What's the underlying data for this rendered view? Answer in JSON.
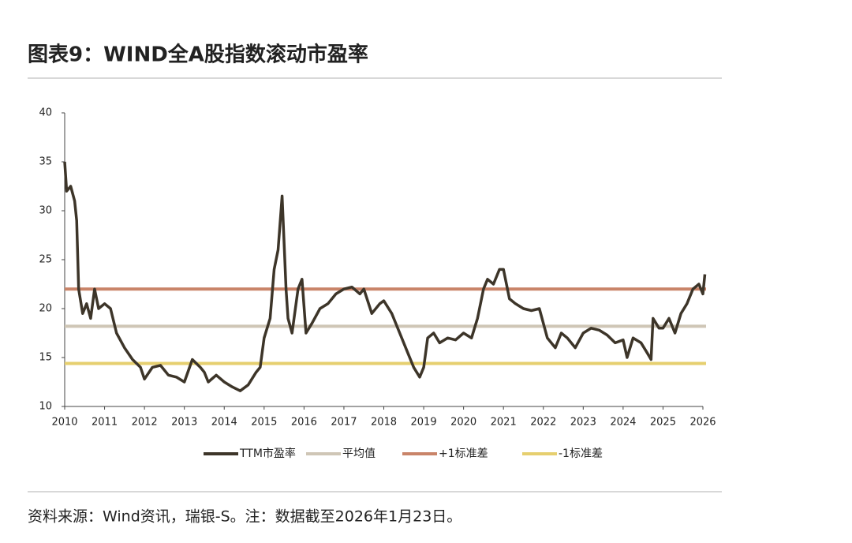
{
  "chart_data": {
    "type": "line",
    "title": "图表9：WIND全A股指数滚动市盈率",
    "source": "资料来源：Wind资讯，瑞银-S。注：数据截至2026年1月23日。",
    "xlim": [
      2010,
      2026
    ],
    "xticks": [
      2010,
      2011,
      2012,
      2013,
      2014,
      2015,
      2016,
      2017,
      2018,
      2019,
      2020,
      2021,
      2022,
      2023,
      2024,
      2025,
      2026
    ],
    "ylim": [
      10,
      40
    ],
    "yticks": [
      10,
      15,
      20,
      25,
      30,
      35,
      40
    ],
    "x": [
      2010.0,
      2010.05,
      2010.15,
      2010.25,
      2010.3,
      2010.35,
      2010.45,
      2010.55,
      2010.65,
      2010.75,
      2010.85,
      2011.0,
      2011.15,
      2011.3,
      2011.5,
      2011.7,
      2011.9,
      2012.0,
      2012.2,
      2012.4,
      2012.6,
      2012.8,
      2013.0,
      2013.2,
      2013.4,
      2013.5,
      2013.6,
      2013.8,
      2014.0,
      2014.2,
      2014.4,
      2014.6,
      2014.8,
      2014.9,
      2015.0,
      2015.15,
      2015.25,
      2015.35,
      2015.45,
      2015.55,
      2015.6,
      2015.7,
      2015.85,
      2015.95,
      2016.05,
      2016.2,
      2016.4,
      2016.6,
      2016.8,
      2017.0,
      2017.2,
      2017.4,
      2017.5,
      2017.7,
      2017.9,
      2018.0,
      2018.2,
      2018.4,
      2018.6,
      2018.75,
      2018.9,
      2019.0,
      2019.1,
      2019.25,
      2019.4,
      2019.6,
      2019.8,
      2020.0,
      2020.2,
      2020.35,
      2020.5,
      2020.6,
      2020.75,
      2020.9,
      2021.0,
      2021.15,
      2021.3,
      2021.5,
      2021.7,
      2021.9,
      2022.1,
      2022.3,
      2022.45,
      2022.6,
      2022.8,
      2023.0,
      2023.2,
      2023.4,
      2023.6,
      2023.8,
      2024.0,
      2024.1,
      2024.25,
      2024.45,
      2024.6,
      2024.7,
      2024.75,
      2024.9,
      2025.0,
      2025.15,
      2025.3,
      2025.45,
      2025.6,
      2025.75,
      2025.9,
      2026.0,
      2026.05
    ],
    "series": [
      {
        "name": "TTM市盈率",
        "color": "#3d3529",
        "values": [
          35,
          32,
          32.5,
          31,
          29,
          22,
          19.5,
          20.5,
          19,
          22,
          20,
          20.5,
          20,
          17.5,
          16,
          14.8,
          14,
          12.8,
          14,
          14.2,
          13.2,
          13,
          12.5,
          14.8,
          14,
          13.5,
          12.5,
          13.2,
          12.5,
          12,
          11.6,
          12.2,
          13.5,
          14,
          17,
          19,
          24,
          26,
          31.5,
          22,
          19,
          17.5,
          22,
          23,
          17.5,
          18.5,
          20,
          20.5,
          21.5,
          22,
          22.2,
          21.5,
          22,
          19.5,
          20.5,
          20.8,
          19.5,
          17.5,
          15.5,
          14,
          13,
          14,
          17,
          17.5,
          16.5,
          17,
          16.8,
          17.5,
          17,
          19,
          22,
          23,
          22.5,
          24,
          24,
          21,
          20.5,
          20,
          19.8,
          20,
          17,
          16,
          17.5,
          17,
          16,
          17.5,
          18,
          17.8,
          17.3,
          16.5,
          16.8,
          15,
          17,
          16.5,
          15.5,
          14.8,
          19,
          18,
          18,
          19,
          17.5,
          19.5,
          20.5,
          22,
          22.5,
          21.5,
          23.5
        ]
      }
    ],
    "reference_lines": [
      {
        "name": "平均值",
        "color": "#cfc6b6",
        "value": 18.2
      },
      {
        "name": "+1标准差",
        "color": "#c98469",
        "value": 22.0
      },
      {
        "name": "-1标准差",
        "color": "#e6cf6f",
        "value": 14.4
      }
    ]
  }
}
